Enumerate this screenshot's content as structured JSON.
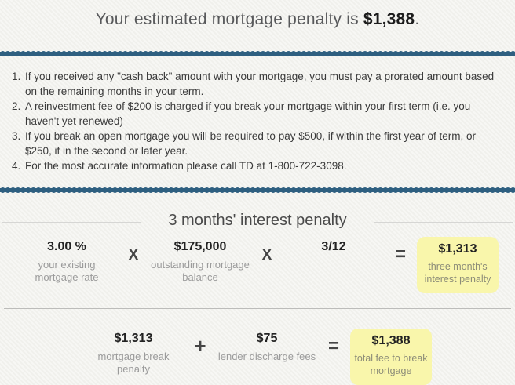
{
  "title": {
    "prefix": "Your estimated mortgage penalty is ",
    "amount": "$1,388",
    "suffix": "."
  },
  "notes": {
    "item1": "If you received any \"cash back\" amount with your mortgage, you must pay a prorated amount based on the remaining months in your term.",
    "item2": "A reinvestment fee of $200 is charged if you break your mortgage within your first term (i.e. you haven't yet renewed)",
    "item3": "If you break an open mortgage you will be required to pay $500, if within the first year of term, or $250, if in the second or later year.",
    "item4": "For the most accurate information please call TD at 1-800-722-3098."
  },
  "interest_section": {
    "heading": "3 months' interest penalty",
    "rate": {
      "value": "3.00 %",
      "label": "your existing mortgage rate"
    },
    "multiply1": "X",
    "balance": {
      "value": "$175,000",
      "label": "outstanding mortgage balance"
    },
    "multiply2": "X",
    "fraction": {
      "value": "3/12",
      "label": ""
    },
    "equals": "=",
    "result": {
      "value": "$1,313",
      "label": "three month's interest penalty"
    }
  },
  "total_section": {
    "break_penalty": {
      "value": "$1,313",
      "label": "mortgage break penalty"
    },
    "plus": "+",
    "discharge": {
      "value": "$75",
      "label": "lender discharge fees"
    },
    "equals": "=",
    "result": {
      "value": "$1,388",
      "label": "total fee to break mortgage"
    }
  },
  "colors": {
    "divider_blue": "#2e5f80",
    "highlight_yellow": "#f9f6ab"
  }
}
